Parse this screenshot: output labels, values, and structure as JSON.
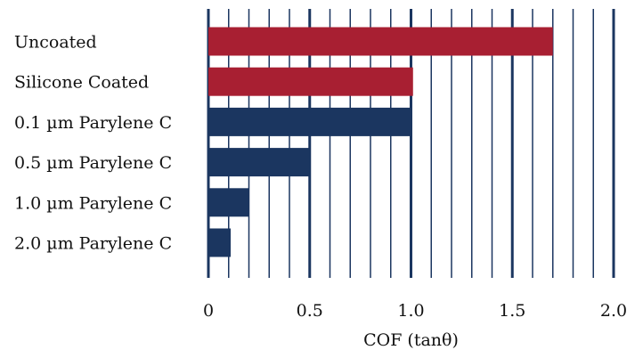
{
  "chart_data": {
    "type": "bar",
    "orientation": "horizontal",
    "categories": [
      "Uncoated",
      "Silicone Coated",
      "0.1 µm Parylene C",
      "0.5 µm Parylene C",
      "1.0 µm Parylene C",
      "2.0 µm Parylene C"
    ],
    "values": [
      1.7,
      1.01,
      1.0,
      0.5,
      0.2,
      0.11
    ],
    "bar_colors": [
      "#a81f32",
      "#a81f32",
      "#1b3660",
      "#1b3660",
      "#1b3660",
      "#1b3660"
    ],
    "xlabel": "COF (tanθ)",
    "ylabel": "",
    "title": "",
    "xlim": [
      0,
      2.0
    ],
    "xticks": [
      0,
      0.5,
      1.0,
      1.5,
      2.0
    ],
    "xtick_labels": [
      "0",
      "0.5",
      "1.0",
      "1.5",
      "2.0"
    ],
    "minor_grid_step": 0.1,
    "grid": true,
    "legend": "none",
    "colors": {
      "major_grid": "#1b3660",
      "minor_grid": "#1b3660",
      "uncoated_bar": "#a81f32",
      "parylene_bar": "#1b3660"
    }
  }
}
